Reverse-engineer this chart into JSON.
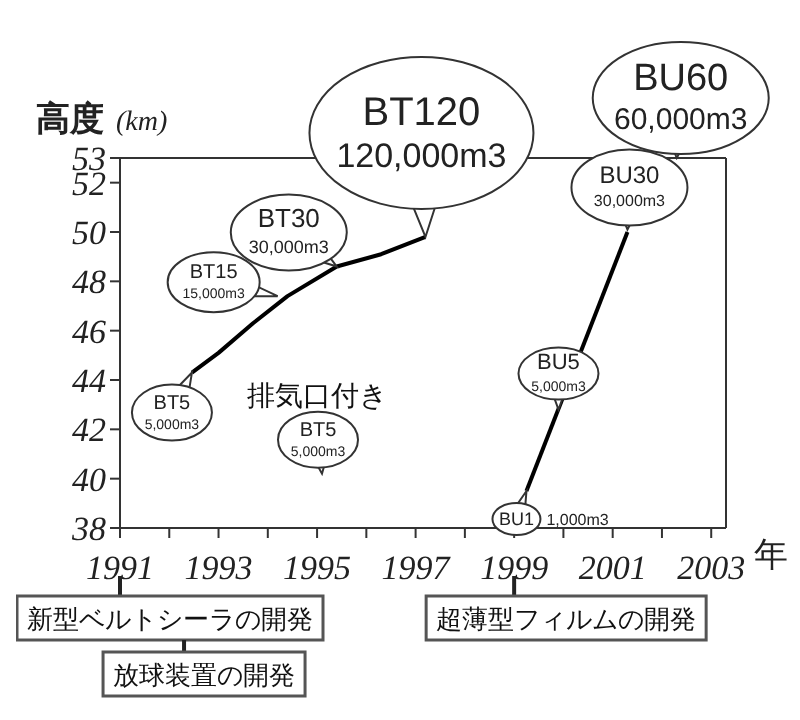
{
  "chart_data": {
    "type": "line",
    "xlabel": "年",
    "ylabel": "高度 (km)",
    "series": [
      {
        "color": "#000000",
        "x": [
          1992.46,
          1993.0,
          1993.7,
          1994.4,
          1995.4,
          1996.3,
          1997.2
        ],
        "values": [
          44.3,
          45.1,
          46.3,
          47.4,
          48.6,
          49.1,
          49.8
        ]
      },
      {
        "color": "#000000",
        "x": [
          1999.25,
          2001.3
        ],
        "values": [
          39.5,
          50.0
        ]
      }
    ],
    "xlim": [
      1991,
      2003.3
    ],
    "xticks": [
      1991,
      {
        "value": 1992,
        "label": null
      },
      1993,
      {
        "value": 1994,
        "label": null
      },
      1995,
      {
        "value": 1996,
        "label": null
      },
      1997,
      {
        "value": 1998,
        "label": null
      },
      1999,
      {
        "value": 2000,
        "label": null
      },
      2001,
      {
        "value": 2002,
        "label": null
      },
      2003
    ],
    "ylim": [
      38,
      53
    ],
    "yticks": [
      38,
      40,
      42,
      44,
      46,
      48,
      50,
      52,
      53
    ],
    "marker": "none",
    "line_style": "solid",
    "annotations": [
      {
        "text": "BT5\n5,000m3",
        "x": 1992.46,
        "y": 44.3
      },
      {
        "text": "BT15\n15,000m3",
        "x": 1994.2,
        "y": 47.4
      },
      {
        "text": "BT30\n30,000m3",
        "x": 1995.4,
        "y": 48.6
      },
      {
        "text": "BT120\n120,000m3",
        "x": 1997.2,
        "y": 49.8
      },
      "排気口付き",
      "BT5\n5,000m3",
      {
        "text": "BU1\n1,000m3",
        "x": 1999.25,
        "y": 39.5
      },
      {
        "text": "BU5\n5,000m3",
        "x": 1999.9,
        "y": 42.8
      },
      {
        "text": "BU30\n30,000m3",
        "x": 2001.3,
        "y": 50.1
      },
      "BU60\n60,000m3",
      "新型ベルトシーラの開発",
      "放球装置の開発",
      "超薄型フィルムの開発"
    ]
  }
}
